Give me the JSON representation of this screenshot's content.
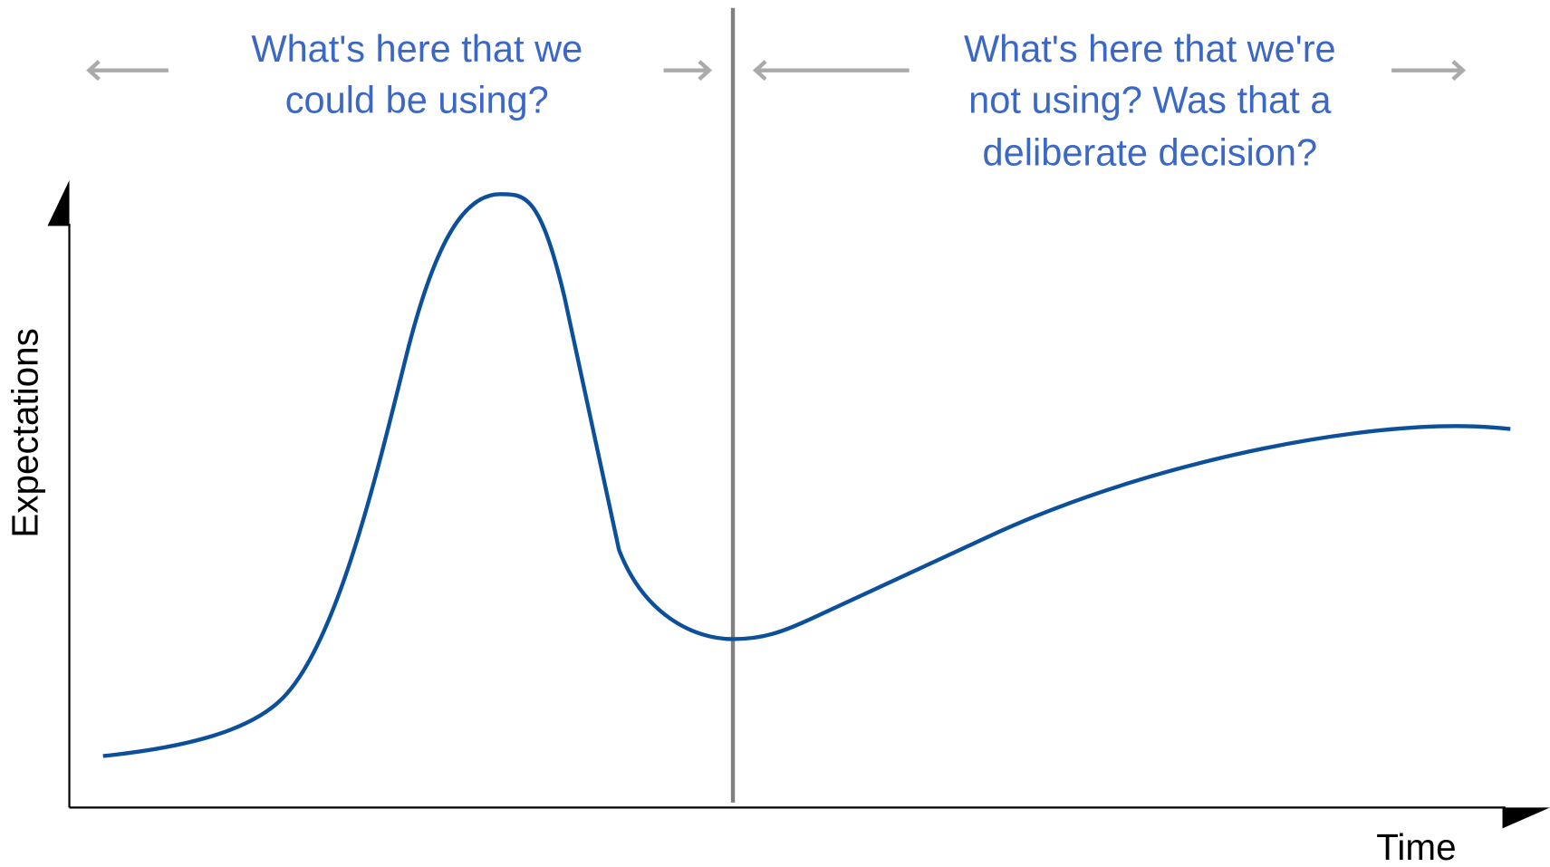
{
  "y_axis_label": "Expectations",
  "x_axis_label": "Time",
  "annotations": [
    {
      "lines": [
        "What's here that we",
        "could be using?"
      ]
    },
    {
      "lines": [
        "What's here that we're",
        "not using? Was that a",
        "deliberate decision?"
      ]
    }
  ]
}
